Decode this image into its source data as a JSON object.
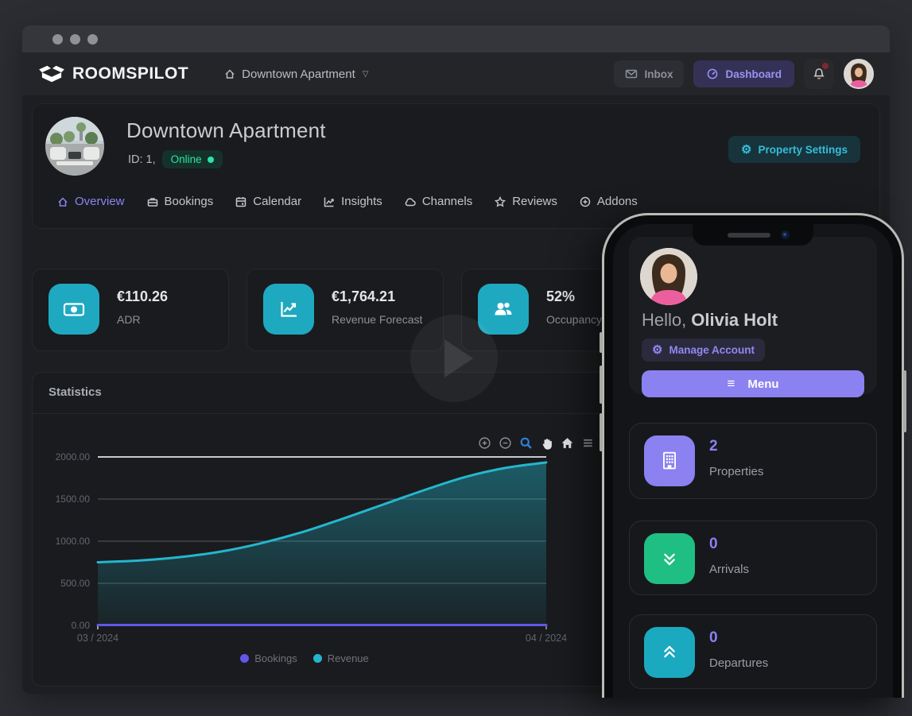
{
  "colors": {
    "accent_purple": "#8b81f1",
    "accent_teal": "#1fa9c0",
    "accent_green": "#1fbf84",
    "online_green": "#2ee3a6"
  },
  "navbar": {
    "brand": "ROOMSPILOT",
    "property_selector": "Downtown Apartment",
    "inbox_label": "Inbox",
    "dashboard_label": "Dashboard"
  },
  "property_header": {
    "title": "Downtown Apartment",
    "id_label": "ID: 1,",
    "status_badge": "Online",
    "settings_button": "Property Settings",
    "tabs": [
      {
        "label": "Overview",
        "icon": "home-icon",
        "active": true
      },
      {
        "label": "Bookings",
        "icon": "briefcase-icon",
        "active": false
      },
      {
        "label": "Calendar",
        "icon": "calendar-icon",
        "active": false
      },
      {
        "label": "Insights",
        "icon": "chart-line-icon",
        "active": false
      },
      {
        "label": "Channels",
        "icon": "cloud-icon",
        "active": false
      },
      {
        "label": "Reviews",
        "icon": "star-icon",
        "active": false
      },
      {
        "label": "Addons",
        "icon": "plus-circle-icon",
        "active": false
      }
    ]
  },
  "stat_cards": [
    {
      "value": "€110.26",
      "label": "ADR",
      "icon": "banknote-icon"
    },
    {
      "value": "€1,764.21",
      "label": "Revenue Forecast",
      "icon": "trend-chart-icon"
    },
    {
      "value": "52%",
      "label": "Occupancy",
      "icon": "users-icon"
    }
  ],
  "statistics": {
    "title": "Statistics",
    "toolbar_icons": [
      "zoom-in-icon",
      "zoom-out-icon",
      "selection-zoom-icon",
      "pan-icon",
      "reset-zoom-icon",
      "menu-icon"
    ],
    "chart_data": {
      "type": "area",
      "title": "Statistics",
      "x_ticks": [
        "03 / 2024",
        "04 / 2024"
      ],
      "ylim": [
        0,
        2000
      ],
      "y_tick_labels": [
        "2000.00",
        "1500.00",
        "1000.00",
        "500.00",
        "0.00"
      ],
      "grid": true,
      "legend_position": "bottom",
      "series": [
        {
          "name": "Bookings",
          "color": "#6157e8",
          "values": [
            5,
            5,
            5,
            5,
            5,
            5,
            5,
            5,
            5,
            5,
            5,
            5
          ]
        },
        {
          "name": "Revenue",
          "color": "#25b6cd",
          "area_fill": true,
          "values": [
            750,
            770,
            810,
            875,
            975,
            1105,
            1265,
            1435,
            1605,
            1760,
            1870,
            1935
          ]
        }
      ]
    }
  },
  "phone": {
    "greeting_prefix": "Hello,",
    "user_name": "Olivia Holt",
    "manage_account_label": "Manage Account",
    "menu_label": "Menu",
    "stat_cards": [
      {
        "value": "2",
        "label": "Properties",
        "icon": "building-icon",
        "accent": "#8b81f1"
      },
      {
        "value": "0",
        "label": "Arrivals",
        "icon": "chevrons-down-icon",
        "accent": "#1fbf84"
      },
      {
        "value": "0",
        "label": "Departures",
        "icon": "chevrons-up-icon",
        "accent": "#1ba9c0"
      }
    ]
  }
}
